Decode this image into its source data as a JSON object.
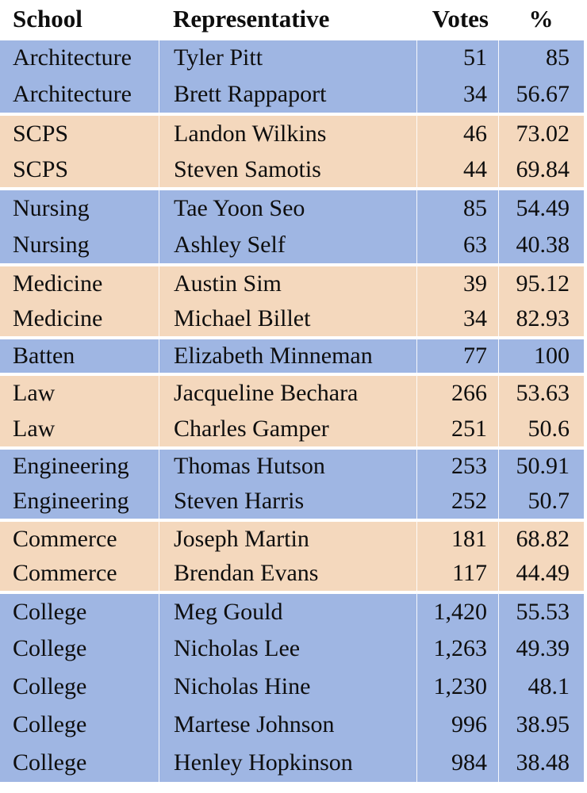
{
  "table": {
    "headers": {
      "school": "School",
      "representative": "Representative",
      "votes": "Votes",
      "percent": "%"
    },
    "rows": [
      {
        "school": "Architecture",
        "representative": "Tyler Pitt",
        "votes": "51",
        "percent": "85",
        "shade": "blue",
        "group_start": false,
        "h": 44
      },
      {
        "school": "Architecture",
        "representative": "Brett Rappaport",
        "votes": "34",
        "percent": "56.67",
        "shade": "blue",
        "group_start": false,
        "h": 47
      },
      {
        "school": "SCPS",
        "representative": "Landon Wilkins",
        "votes": "46",
        "percent": "73.02",
        "shade": "peach",
        "group_start": true,
        "h": 49
      },
      {
        "school": "SCPS",
        "representative": "Steven Samotis",
        "votes": "44",
        "percent": "69.84",
        "shade": "peach",
        "group_start": false,
        "h": 45
      },
      {
        "school": "Nursing",
        "representative": "Tae Yoon Seo",
        "votes": "85",
        "percent": "54.49",
        "shade": "blue",
        "group_start": true,
        "h": 50
      },
      {
        "school": "Nursing",
        "representative": "Ashley Self",
        "votes": "63",
        "percent": "40.38",
        "shade": "blue",
        "group_start": false,
        "h": 46
      },
      {
        "school": "Medicine",
        "representative": "Austin Sim",
        "votes": "39",
        "percent": "95.12",
        "shade": "peach",
        "group_start": true,
        "h": 47
      },
      {
        "school": "Medicine",
        "representative": "Michael Billet",
        "votes": "34",
        "percent": "82.93",
        "shade": "peach",
        "group_start": false,
        "h": 45
      },
      {
        "school": "Batten",
        "representative": "Elizabeth Minneman",
        "votes": "77",
        "percent": "100",
        "shade": "blue",
        "group_start": true,
        "h": 46
      },
      {
        "school": "Law",
        "representative": "Jacqueline Bechara",
        "votes": "266",
        "percent": "53.63",
        "shade": "peach",
        "group_start": true,
        "h": 48
      },
      {
        "school": "Law",
        "representative": "Charles Gamper",
        "votes": "251",
        "percent": "50.6",
        "shade": "peach",
        "group_start": false,
        "h": 45
      },
      {
        "school": "Engineering",
        "representative": "Thomas Hutson",
        "votes": "253",
        "percent": "50.91",
        "shade": "blue",
        "group_start": true,
        "h": 46
      },
      {
        "school": "Engineering",
        "representative": "Steven Harris",
        "votes": "252",
        "percent": "50.7",
        "shade": "blue",
        "group_start": false,
        "h": 45
      },
      {
        "school": "Commerce",
        "representative": "Joseph Martin",
        "votes": "181",
        "percent": "68.82",
        "shade": "peach",
        "group_start": true,
        "h": 47
      },
      {
        "school": "Commerce",
        "representative": "Brendan Evans",
        "votes": "117",
        "percent": "44.49",
        "shade": "peach",
        "group_start": false,
        "h": 44
      },
      {
        "school": "College",
        "representative": "Meg Gould",
        "votes": "1,420",
        "percent": "55.53",
        "shade": "blue",
        "group_start": true,
        "h": 49
      },
      {
        "school": "College",
        "representative": "Nicholas Lee",
        "votes": "1,263",
        "percent": "49.39",
        "shade": "blue",
        "group_start": false,
        "h": 48
      },
      {
        "school": "College",
        "representative": "Nicholas Hine",
        "votes": "1,230",
        "percent": "48.1",
        "shade": "blue",
        "group_start": false,
        "h": 48
      },
      {
        "school": "College",
        "representative": "Martese Johnson",
        "votes": "996",
        "percent": "38.95",
        "shade": "blue",
        "group_start": false,
        "h": 48
      },
      {
        "school": "College",
        "representative": "Henley Hopkinson",
        "votes": "984",
        "percent": "38.48",
        "shade": "blue",
        "group_start": false,
        "h": 48
      }
    ]
  },
  "colors": {
    "blue_row": "#9fb6e3",
    "peach_row": "#f4d8bd",
    "text": "#0e0e0e"
  }
}
